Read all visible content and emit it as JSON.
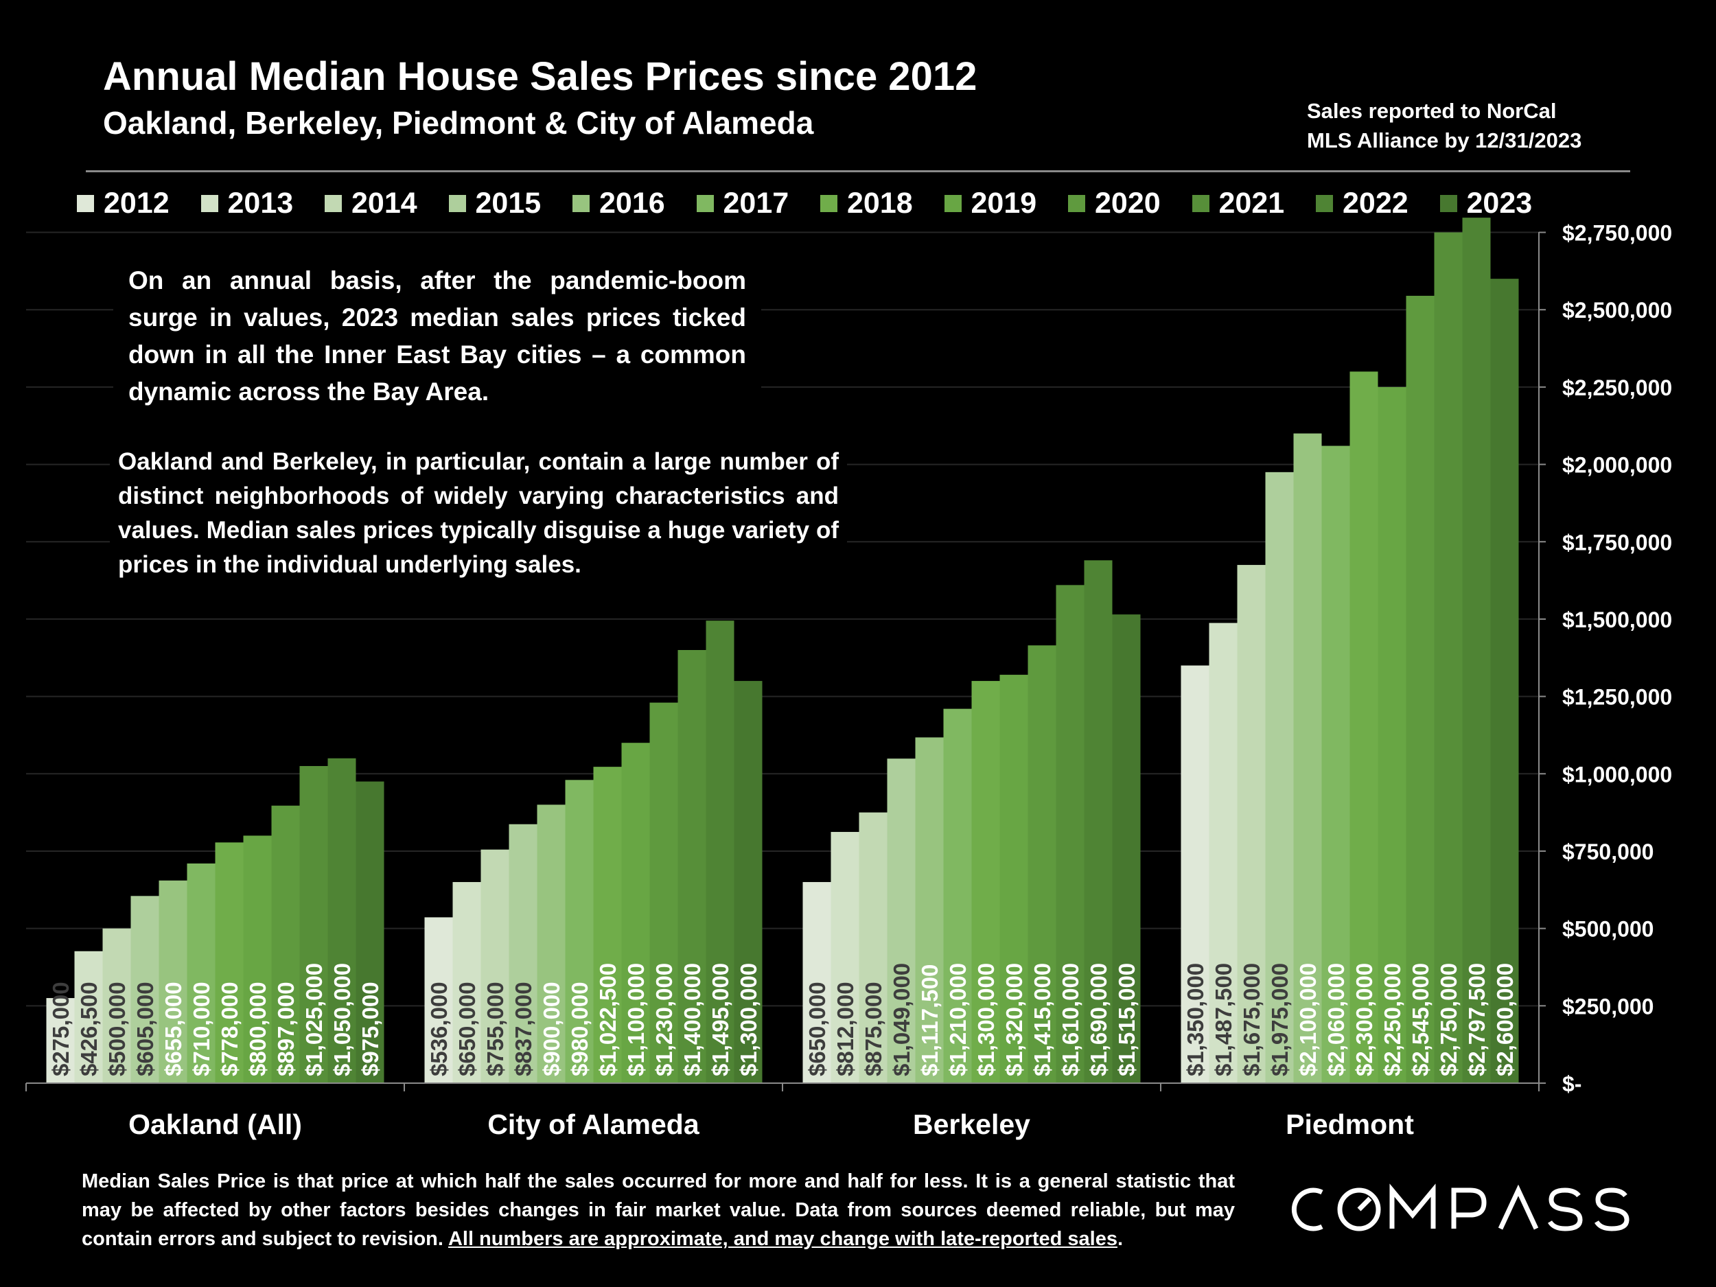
{
  "header": {
    "title": "Annual Median House Sales Prices since 2012",
    "subtitle": "Oakland, Berkeley, Piedmont & City of Alameda",
    "source_line1": "Sales reported to NorCal",
    "source_line2": "MLS Alliance by 12/31/2023"
  },
  "notes": {
    "note1": "On an annual basis, after the pandemic-boom surge in values, 2023 median sales prices ticked down in all the Inner East Bay cities – a common dynamic across the Bay Area.",
    "note2": "Oakland and Berkeley, in particular, contain a large number of distinct neighborhoods of widely varying characteristics and values. Median sales prices typically disguise a huge variety of prices in the individual underlying sales."
  },
  "footer": {
    "text": "Median Sales Price is that price at which half the sales occurred for more and half for less. It is a general statistic that may be affected by other factors besides changes in fair market value. Data from sources deemed reliable, but may contain errors and subject to revision. ",
    "underlined": "All numbers are approximate, and may change with late-reported sales",
    "end": "."
  },
  "logo": {
    "text": "COMPASS"
  },
  "colors": {
    "background": "#000000",
    "series": [
      "#dfe8d8",
      "#d2e2c7",
      "#c2d9b3",
      "#aecf9c",
      "#98c47f",
      "#80b861",
      "#70ad4a",
      "#68a644",
      "#5f9a3e",
      "#578f39",
      "#4f8434",
      "#47782f"
    ]
  },
  "chart_data": {
    "type": "bar",
    "categories": [
      "Oakland (All)",
      "City of Alameda",
      "Berkeley",
      "Piedmont"
    ],
    "series": [
      {
        "name": "2012",
        "values": [
          275000,
          536000,
          650000,
          1350000
        ],
        "labels": [
          "$275,000",
          "$536,000",
          "$650,000",
          "$1,350,000"
        ]
      },
      {
        "name": "2013",
        "values": [
          426500,
          650000,
          812000,
          1487500
        ],
        "labels": [
          "$426,500",
          "$650,000",
          "$812,000",
          "$1,487,500"
        ]
      },
      {
        "name": "2014",
        "values": [
          500000,
          755000,
          875000,
          1675000
        ],
        "labels": [
          "$500,000",
          "$755,000",
          "$875,000",
          "$1,675,000"
        ]
      },
      {
        "name": "2015",
        "values": [
          605000,
          837000,
          1049000,
          1975000
        ],
        "labels": [
          "$605,000",
          "$837,000",
          "$1,049,000",
          "$1,975,000"
        ]
      },
      {
        "name": "2016",
        "values": [
          655000,
          900000,
          1117500,
          2100000
        ],
        "labels": [
          "$655,000",
          "$900,000",
          "$1,117,500",
          "$2,100,000"
        ]
      },
      {
        "name": "2017",
        "values": [
          710000,
          980000,
          1210000,
          2060000
        ],
        "labels": [
          "$710,000",
          "$980,000",
          "$1,210,000",
          "$2,060,000"
        ]
      },
      {
        "name": "2018",
        "values": [
          778000,
          1022500,
          1300000,
          2300000
        ],
        "labels": [
          "$778,000",
          "$1,022,500",
          "$1,300,000",
          "$2,300,000"
        ]
      },
      {
        "name": "2019",
        "values": [
          800000,
          1100000,
          1320000,
          2250000
        ],
        "labels": [
          "$800,000",
          "$1,100,000",
          "$1,320,000",
          "$2,250,000"
        ]
      },
      {
        "name": "2020",
        "values": [
          897000,
          1230000,
          1415000,
          2545000
        ],
        "labels": [
          "$897,000",
          "$1,230,000",
          "$1,415,000",
          "$2,545,000"
        ]
      },
      {
        "name": "2021",
        "values": [
          1025000,
          1400000,
          1610000,
          2750000
        ],
        "labels": [
          "$1,025,000",
          "$1,400,000",
          "$1,610,000",
          "$2,750,000"
        ]
      },
      {
        "name": "2022",
        "values": [
          1050000,
          1495000,
          1690000,
          2797500
        ],
        "labels": [
          "$1,050,000",
          "$1,495,000",
          "$1,690,000",
          "$2,797,500"
        ]
      },
      {
        "name": "2023",
        "values": [
          975000,
          1300000,
          1515000,
          2600000
        ],
        "labels": [
          "$975,000",
          "$1,300,000",
          "$1,515,000",
          "$2,600,000"
        ]
      }
    ],
    "ylim": [
      0,
      2800000
    ],
    "yticks": [
      0,
      250000,
      500000,
      750000,
      1000000,
      1250000,
      1500000,
      1750000,
      2000000,
      2250000,
      2500000,
      2750000
    ],
    "ytick_labels": [
      "$-",
      "$250,000",
      "$500,000",
      "$750,000",
      "$1,000,000",
      "$1,250,000",
      "$1,500,000",
      "$1,750,000",
      "$2,000,000",
      "$2,250,000",
      "$2,500,000",
      "$2,750,000"
    ],
    "y_axis_side": "right",
    "grid": true,
    "legend": "top"
  }
}
